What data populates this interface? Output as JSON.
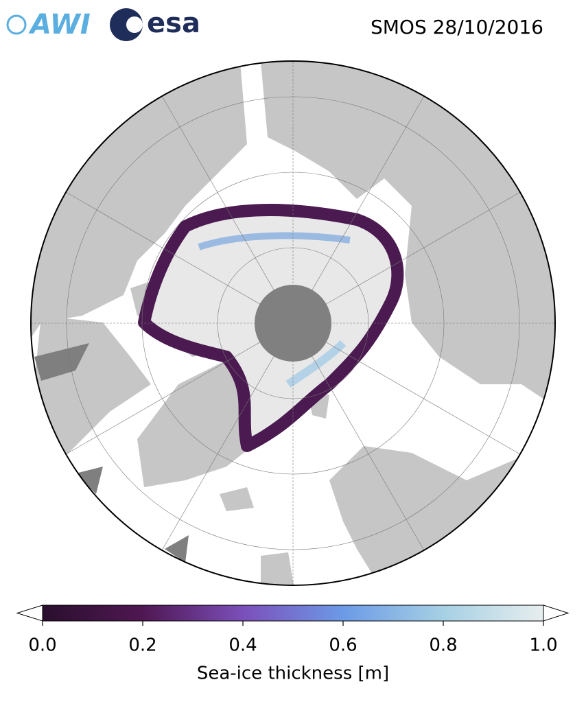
{
  "header": {
    "logos": [
      "AWI",
      "esa"
    ],
    "title": "SMOS 28/10/2016"
  },
  "colorbar": {
    "label": "Sea-ice thickness [m]",
    "lim": [
      0,
      1
    ],
    "ticks": [
      {
        "value": 0,
        "label": "0.0"
      },
      0.2,
      0.4,
      0.6,
      0.8,
      {
        "value": 1,
        "label": "1.0"
      }
    ]
  }
}
